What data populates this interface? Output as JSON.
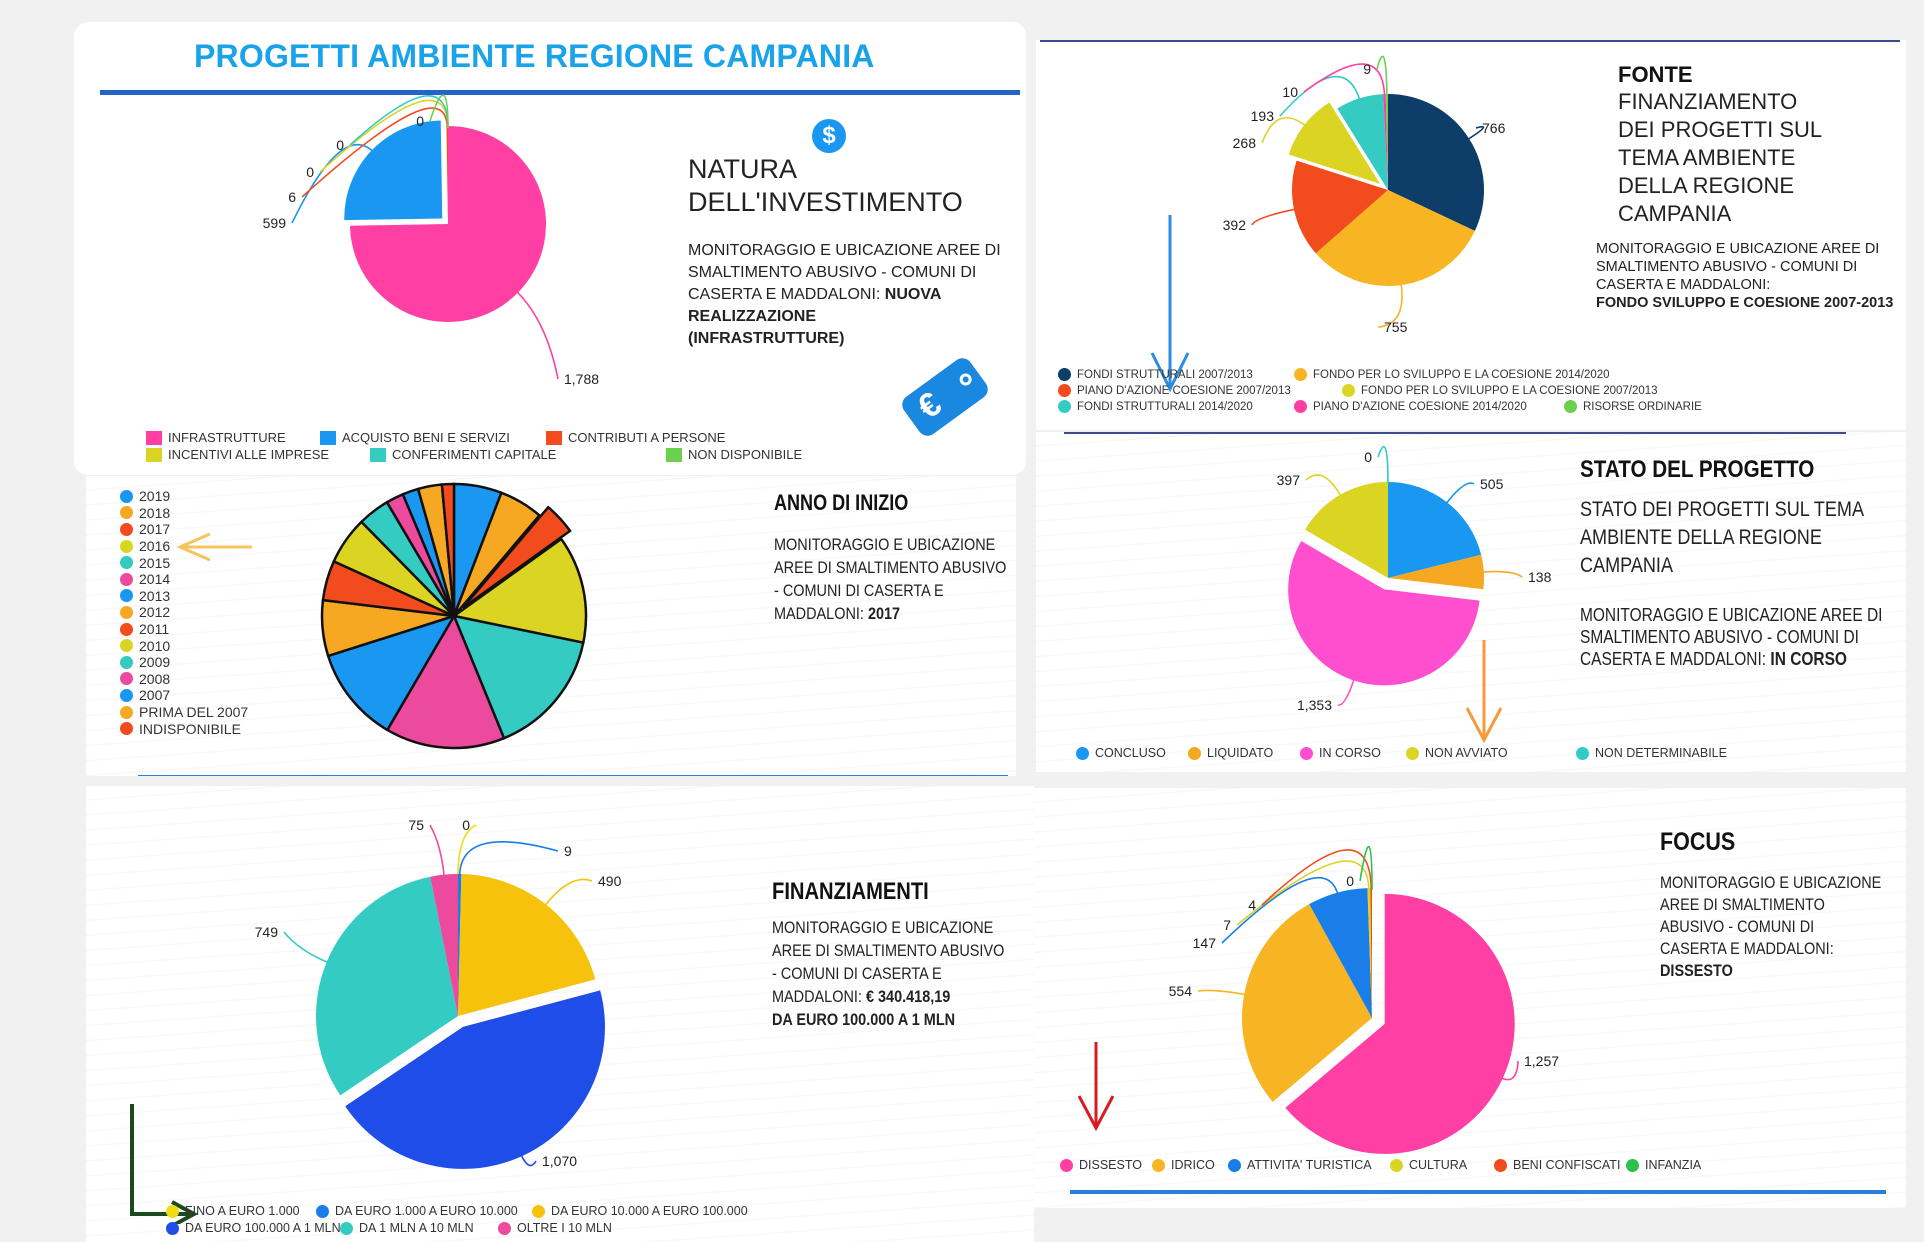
{
  "colors": {
    "pink": "#ff3fa4",
    "blue": "#1a97f0",
    "red": "#f24b1d",
    "yellow": "#dcd423",
    "teal": "#34cbc3",
    "green": "#6ad04f",
    "navy": "#0d3d68",
    "orange": "#f7a823",
    "gold": "#f6c20c",
    "royal": "#1e4de8",
    "title_blue": "#1aa3e8"
  },
  "natura": {
    "title": "PROGETTI AMBIENTE REGIONE CAMPANIA",
    "heading_line1": "NATURA",
    "heading_line2": "DELL'INVESTIMENTO",
    "desc": "MONITORAGGIO E UBICAZIONE AREE DI SMALTIMENTO ABUSIVO - COMUNI DI CASERTA E MADDALONI:",
    "desc_bold1": "NUOVA",
    "desc_bold2": "REALIZZAZIONE",
    "desc_bold3": "(INFRASTRUTTURE)",
    "dollar_icon": "$",
    "euro_tag_icon": "€",
    "legend": [
      "INFRASTRUTTURE",
      "ACQUISTO BENI E SERVIZI",
      "CONTRIBUTI A PERSONE",
      "INCENTIVI ALLE IMPRESE",
      "CONFERIMENTI CAPITALE",
      "NON DISPONIBILE"
    ]
  },
  "fonte": {
    "heading": "FONTE",
    "heading_lines": [
      "FINANZIAMENTO",
      "DEI PROGETTI SUL",
      "TEMA AMBIENTE",
      "DELLA REGIONE",
      "CAMPANIA"
    ],
    "desc": "MONITORAGGIO E UBICAZIONE AREE DI SMALTIMENTO ABUSIVO - COMUNI DI CASERTA E MADDALONI:",
    "desc_bold": "FONDO SVILUPPO E COESIONE 2007-2013",
    "legend": [
      "FONDI STRUTTURALI 2007/2013",
      "FONDO PER LO SVILUPPO E LA COESIONE 2014/2020",
      "PIANO D'AZIONE COESIONE 2007/2013",
      "FONDO PER LO SVILUPPO E LA COESIONE 2007/2013",
      "FONDI STRUTTURALI 2014/2020",
      "PIANO D'AZIONE COESIONE 2014/2020",
      "RISORSE ORDINARIE"
    ]
  },
  "anno": {
    "heading": "ANNO DI INIZIO",
    "desc_lines": [
      "MONITORAGGIO E UBICAZIONE",
      "AREE DI SMALTIMENTO ABUSIVO",
      "- COMUNI DI CASERTA E"
    ],
    "desc_last": "MADDALONI:",
    "desc_bold": "2017",
    "legend": [
      "2019",
      "2018",
      "2017",
      "2016",
      "2015",
      "2014",
      "2013",
      "2012",
      "2011",
      "2010",
      "2009",
      "2008",
      "2007",
      "PRIMA DEL 2007",
      "INDISPONIBILE"
    ]
  },
  "stato": {
    "heading": "STATO DEL PROGETTO",
    "subheading_lines": [
      "STATO DEI PROGETTI SUL TEMA",
      "AMBIENTE DELLA REGIONE",
      "CAMPANIA"
    ],
    "desc_lines": [
      "MONITORAGGIO E UBICAZIONE AREE DI",
      "SMALTIMENTO ABUSIVO - COMUNI DI"
    ],
    "desc_last": "CASERTA E MADDALONI:",
    "desc_bold": "IN CORSO",
    "legend": [
      "CONCLUSO",
      "LIQUIDATO",
      "IN CORSO",
      "NON AVVIATO",
      "NON DETERMINABILE"
    ]
  },
  "finanziamenti": {
    "heading": "FINANZIAMENTI",
    "desc_lines": [
      "MONITORAGGIO E UBICAZIONE",
      "AREE DI SMALTIMENTO ABUSIVO",
      "- COMUNI DI CASERTA E"
    ],
    "desc_last": "MADDALONI:",
    "desc_bold1": "€ 340.418,19",
    "desc_bold2": "DA EURO 100.000 A 1 MLN",
    "legend": [
      "FINO A EURO 1.000",
      "DA EURO 1.000 A EURO 10.000",
      "DA EURO 10.000 A EURO 100.000",
      "DA EURO 100.000 A 1 MLN",
      "DA 1 MLN A 10 MLN",
      "OLTRE I 10 MLN"
    ]
  },
  "focus": {
    "heading": "FOCUS",
    "desc_lines": [
      "MONITORAGGIO E UBICAZIONE",
      "AREE DI SMALTIMENTO",
      "ABUSIVO - COMUNI DI",
      "CASERTA E MADDALONI:"
    ],
    "desc_bold": "DISSESTO",
    "legend": [
      "DISSESTO",
      "IDRICO",
      "ATTIVITA' TURISTICA",
      "CULTURA",
      "BENI CONFISCATI",
      "INFANZIA"
    ]
  },
  "chart_data": [
    {
      "type": "pie",
      "title": "NATURA DELL'INVESTIMENTO",
      "categories": [
        "INFRASTRUTTURE",
        "ACQUISTO BENI E SERVIZI",
        "CONTRIBUTI A PERSONE",
        "INCENTIVI ALLE IMPRESE",
        "CONFERIMENTI CAPITALE",
        "NON DISPONIBILE"
      ],
      "values": [
        1788,
        599,
        6,
        0,
        0,
        0
      ],
      "labels": [
        "1,788",
        "599",
        "6",
        "0",
        "0",
        "0"
      ],
      "colors": [
        "#ff3fa4",
        "#1a97f0",
        "#f24b1d",
        "#dcd423",
        "#34cbc3",
        "#6ad04f"
      ],
      "exploded": "ACQUISTO BENI E SERVIZI",
      "legend_position": "bottom"
    },
    {
      "type": "pie",
      "title": "FONTE FINANZIAMENTO DEI PROGETTI SUL TEMA AMBIENTE DELLA REGIONE CAMPANIA",
      "categories": [
        "FONDI STRUTTURALI 2007/2013",
        "FONDO PER LO SVILUPPO E LA COESIONE 2014/2020",
        "PIANO D'AZIONE COESIONE 2007/2013",
        "FONDO PER LO SVILUPPO E LA COESIONE 2007/2013",
        "FONDI STRUTTURALI 2014/2020",
        "PIANO D'AZIONE COESIONE 2014/2020",
        "RISORSE ORDINARIE"
      ],
      "values": [
        766,
        755,
        392,
        268,
        193,
        10,
        9
      ],
      "labels": [
        "766",
        "755",
        "392",
        "268",
        "193",
        "10",
        "9"
      ],
      "colors": [
        "#0d3d68",
        "#f7b523",
        "#f24b1d",
        "#dcd423",
        "#34cbc3",
        "#ff3fa4",
        "#6ad04f"
      ],
      "exploded": "FONDO PER LO SVILUPPO E LA COESIONE 2007/2013",
      "legend_position": "bottom"
    },
    {
      "type": "pie",
      "title": "ANNO DI INIZIO",
      "categories": [
        "2019",
        "2018",
        "2017",
        "2016",
        "2015",
        "2014",
        "2013",
        "2012",
        "2011",
        "2010",
        "2009",
        "2008",
        "2007",
        "PRIMA DEL 2007",
        "INDISPONIBILE"
      ],
      "values": [
        60,
        55,
        40,
        135,
        160,
        150,
        120,
        70,
        50,
        60,
        40,
        22,
        20,
        30,
        15
      ],
      "colors": [
        "#1a97f0",
        "#f7a823",
        "#f24b1d",
        "#dcd423",
        "#34cbc3",
        "#ec4a9c",
        "#1a97f0",
        "#f7a823",
        "#f24b1d",
        "#dcd423",
        "#34cbc3",
        "#ec4a9c",
        "#1a97f0",
        "#f7a823",
        "#f24b1d"
      ],
      "exploded": "2017",
      "legend_position": "left"
    },
    {
      "type": "pie",
      "title": "STATO DEL PROGETTO",
      "categories": [
        "CONCLUSO",
        "LIQUIDATO",
        "IN CORSO",
        "NON AVVIATO",
        "NON DETERMINABILE"
      ],
      "values": [
        505,
        138,
        1353,
        397,
        0
      ],
      "labels": [
        "505",
        "138",
        "1,353",
        "397",
        "0"
      ],
      "colors": [
        "#1a97f0",
        "#f7a823",
        "#ff4fcf",
        "#dcd423",
        "#34cbc3"
      ],
      "exploded": "IN CORSO",
      "legend_position": "bottom"
    },
    {
      "type": "pie",
      "title": "FINANZIAMENTI",
      "categories": [
        "FINO A EURO 1.000",
        "DA EURO 1.000 A EURO 10.000",
        "DA EURO 10.000 A EURO 100.000",
        "DA EURO 100.000 A 1 MLN",
        "DA 1 MLN A 10 MLN",
        "OLTRE I 10 MLN"
      ],
      "values": [
        0,
        9,
        490,
        1070,
        749,
        75
      ],
      "labels": [
        "0",
        "9",
        "490",
        "1,070",
        "749",
        "75"
      ],
      "colors": [
        "#f0dc10",
        "#1a7ee8",
        "#f6c20c",
        "#1e4de8",
        "#34cbc3",
        "#ec4a9c"
      ],
      "exploded": "DA EURO 100.000 A 1 MLN",
      "legend_position": "bottom"
    },
    {
      "type": "pie",
      "title": "FOCUS",
      "categories": [
        "DISSESTO",
        "IDRICO",
        "ATTIVITA' TURISTICA",
        "CULTURA",
        "BENI CONFISCATI",
        "INFANZIA"
      ],
      "values": [
        1257,
        554,
        147,
        7,
        4,
        0
      ],
      "labels": [
        "1,257",
        "554",
        "147",
        "7",
        "4",
        "0"
      ],
      "colors": [
        "#ff3fa4",
        "#f7b523",
        "#1a7ee8",
        "#dcd423",
        "#f24b1d",
        "#2cc14a"
      ],
      "exploded": "DISSESTO",
      "legend_position": "bottom"
    }
  ]
}
